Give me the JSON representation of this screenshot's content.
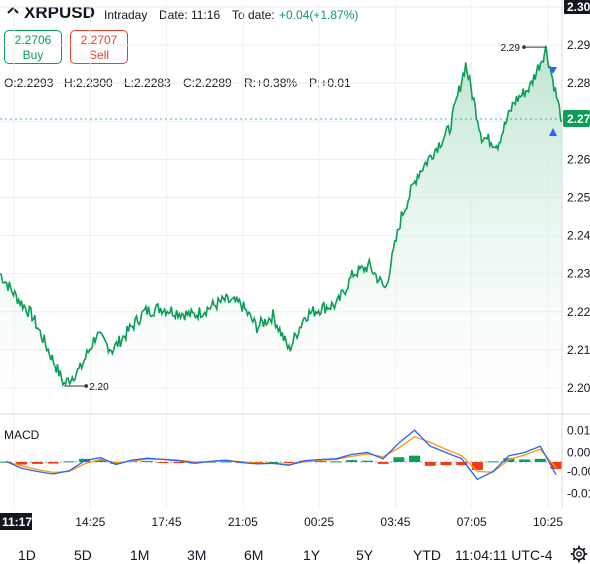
{
  "header": {
    "symbol": "XRPUSD",
    "interval": "Intraday",
    "date_label": "Date: 11:16",
    "todate_label": "To date:",
    "todate_value": "+0.04(+1.87%)"
  },
  "buttons": {
    "buy_price": "2.2706",
    "buy_label": "Buy",
    "sell_price": "2.2707",
    "sell_label": "Sell"
  },
  "ohlc": {
    "o": "O:2.2293",
    "h": "H:2.2300",
    "l": "L:2.2283",
    "c": "C:2.2289",
    "r": "R:+0.38%",
    "p": "P:+0.01"
  },
  "colors": {
    "price_line": "#0a9e57",
    "area_top": "#b8e3cc",
    "macd_line": "#2962ff",
    "signal_line": "#ff9800",
    "hist_pos": "#0a9e57",
    "hist_neg": "#f23b14",
    "current_price_bg": "#0a9e57"
  },
  "chart_data": [
    {
      "type": "area",
      "y_ticks": [
        "2.30",
        "2.29",
        "2.28",
        "2.27",
        "2.26",
        "2.25",
        "2.24",
        "2.23",
        "2.22",
        "2.21",
        "2.20"
      ],
      "x_ticks": [
        "11:17",
        "14:25",
        "17:45",
        "21:05",
        "00:25",
        "03:45",
        "07:05",
        "10:25"
      ],
      "ylim": [
        2.195,
        2.3
      ],
      "current_price_label": "2.27",
      "high_annotation": "2.29",
      "low_annotation": "2.20",
      "x": [
        "11:17",
        "12:17",
        "13:00",
        "13:45",
        "14:25",
        "15:05",
        "15:45",
        "16:25",
        "17:05",
        "17:45",
        "18:25",
        "19:05",
        "19:45",
        "20:25",
        "21:05",
        "21:45",
        "22:25",
        "23:05",
        "23:45",
        "00:25",
        "01:05",
        "01:45",
        "02:25",
        "03:05",
        "03:45",
        "04:25",
        "05:05",
        "05:45",
        "06:25",
        "07:05",
        "07:45",
        "08:25",
        "09:05",
        "09:45",
        "10:25",
        "11:05"
      ],
      "values": [
        2.23,
        2.224,
        2.219,
        2.21,
        2.201,
        2.205,
        2.214,
        2.21,
        2.215,
        2.22,
        2.221,
        2.22,
        2.219,
        2.221,
        2.223,
        2.222,
        2.216,
        2.219,
        2.21,
        2.219,
        2.221,
        2.222,
        2.23,
        2.232,
        2.226,
        2.245,
        2.256,
        2.262,
        2.268,
        2.285,
        2.266,
        2.264,
        2.275,
        2.279,
        2.289,
        2.27
      ]
    },
    {
      "type": "bar",
      "name": "MACD",
      "y_ticks": [
        "0.01",
        "0.00",
        "-0.00",
        "-0.01"
      ],
      "ylim": [
        -0.012,
        0.012
      ],
      "x": [
        "11:17",
        "12:17",
        "13:00",
        "13:45",
        "14:25",
        "15:05",
        "15:45",
        "16:25",
        "17:05",
        "17:45",
        "18:25",
        "19:05",
        "19:45",
        "20:25",
        "21:05",
        "21:45",
        "22:25",
        "23:05",
        "23:45",
        "00:25",
        "01:05",
        "01:45",
        "02:25",
        "03:05",
        "03:45",
        "04:25",
        "05:05",
        "05:45",
        "06:25",
        "07:05",
        "07:45",
        "08:25",
        "09:05",
        "09:45",
        "10:25",
        "11:05"
      ],
      "macd": [
        0.0002,
        -0.002,
        -0.003,
        -0.0038,
        -0.0028,
        0.0004,
        0.0014,
        -0.0008,
        0.0006,
        0.0012,
        0.0008,
        0.0004,
        -0.0004,
        0.0002,
        0.0006,
        -0.0002,
        -0.0006,
        -0.0004,
        -0.001,
        0.0004,
        0.0008,
        0.001,
        0.0024,
        0.003,
        0.001,
        0.006,
        0.01,
        0.005,
        0.003,
        0.001,
        -0.0055,
        -0.003,
        0.002,
        0.003,
        0.005,
        -0.004
      ],
      "signal": [
        0.0001,
        -0.0012,
        -0.0024,
        -0.0033,
        -0.003,
        -0.0006,
        0.0008,
        -0.0002,
        0.0002,
        0.0009,
        0.0009,
        0.0006,
        0.0,
        0.0001,
        0.0004,
        0.0001,
        -0.0004,
        -0.0004,
        -0.0008,
        0.0,
        0.0005,
        0.0008,
        0.0018,
        0.0026,
        0.0016,
        0.0045,
        0.008,
        0.0062,
        0.004,
        0.002,
        -0.003,
        -0.0032,
        0.0008,
        0.0022,
        0.004,
        -0.0018
      ],
      "histogram": [
        0.0001,
        -0.0008,
        -0.0006,
        -0.0005,
        0.0002,
        0.001,
        0.0006,
        -0.0006,
        0.0004,
        0.0003,
        -0.0001,
        -0.0002,
        -0.0004,
        0.0001,
        0.0002,
        -0.0003,
        -0.0002,
        0.0,
        -0.0002,
        0.0004,
        0.0003,
        0.0002,
        0.0006,
        0.0004,
        -0.0006,
        0.0015,
        0.002,
        -0.0012,
        -0.001,
        -0.001,
        -0.0025,
        0.0002,
        0.0012,
        0.0008,
        0.001,
        -0.0022
      ]
    }
  ],
  "macd_label": "MACD",
  "ranges": [
    "1D",
    "5D",
    "1M",
    "3M",
    "6M",
    "1Y",
    "5Y",
    "YTD"
  ],
  "clock": "11:04:11 UTC-4"
}
